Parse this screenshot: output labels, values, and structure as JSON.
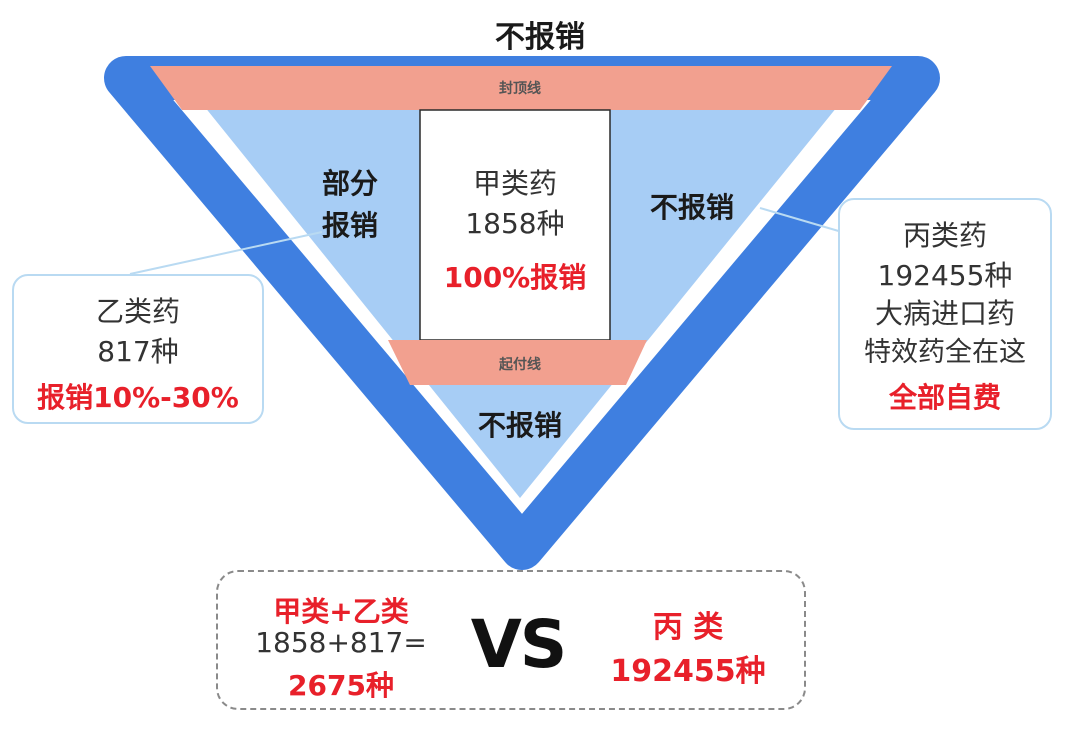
{
  "top_title": "不报销",
  "ceiling_label": "封顶线",
  "deductible_label": "起付线",
  "left_zone": {
    "line1": "部分",
    "line2": "报销"
  },
  "right_zone_label": "不报销",
  "bottom_zone_label": "不报销",
  "class_a": {
    "name": "甲类药",
    "count": "1858种",
    "rate": "100%报销"
  },
  "class_b": {
    "name": "乙类药",
    "count": "817种",
    "rate": "报销10%-30%"
  },
  "class_c": {
    "name": "丙类药",
    "count": "192455种",
    "line3": "大病进口药",
    "line4": "特效药全在这",
    "rate": "全部自费"
  },
  "comparison": {
    "left_title": "甲类+乙类",
    "left_formula": "1858+817=",
    "left_total": "2675种",
    "vs": "VS",
    "right_title": "丙 类",
    "right_total": "192455种"
  },
  "colors": {
    "outline_blue": "#3f7fe0",
    "fill_light_blue": "#a7cdf5",
    "band_salmon": "#f2a08f",
    "accent_red": "#e8202a"
  }
}
